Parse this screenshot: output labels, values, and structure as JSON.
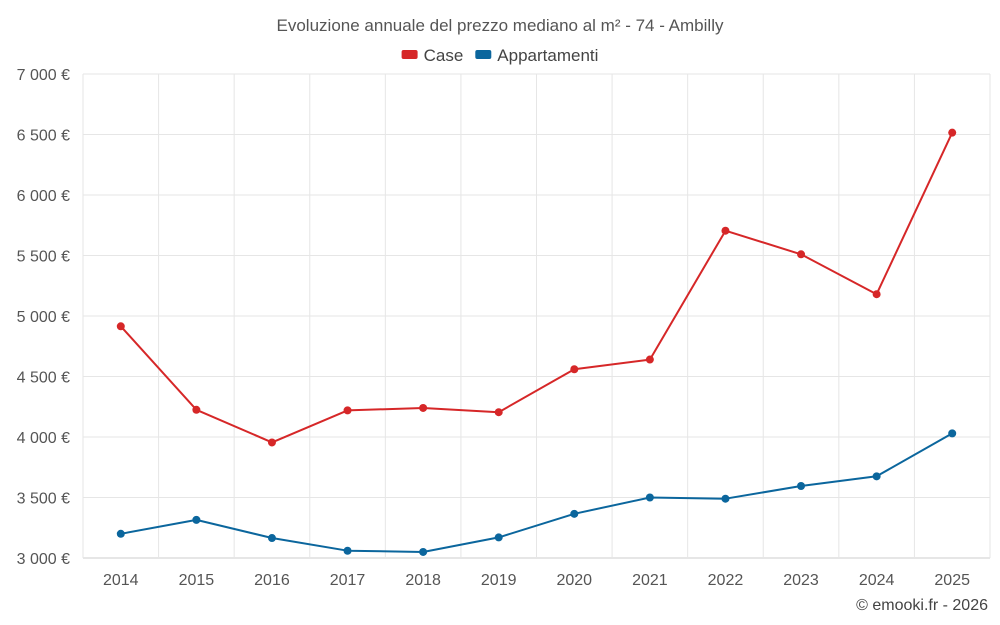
{
  "chart_data": {
    "type": "line",
    "title": "Evoluzione annuale del prezzo mediano al m² - 74 - Ambilly",
    "xlabel": "",
    "ylabel": "",
    "categories": [
      "2014",
      "2015",
      "2016",
      "2017",
      "2018",
      "2019",
      "2020",
      "2021",
      "2022",
      "2023",
      "2024",
      "2025"
    ],
    "ylim": [
      3000,
      7000
    ],
    "yticks": [
      {
        "value": 3000,
        "label": "3 000 €"
      },
      {
        "value": 3500,
        "label": "3 500 €"
      },
      {
        "value": 4000,
        "label": "4 000 €"
      },
      {
        "value": 4500,
        "label": "4 500 €"
      },
      {
        "value": 5000,
        "label": "5 000 €"
      },
      {
        "value": 5500,
        "label": "5 500 €"
      },
      {
        "value": 6000,
        "label": "6 000 €"
      },
      {
        "value": 6500,
        "label": "6 500 €"
      },
      {
        "value": 7000,
        "label": "7 000 €"
      }
    ],
    "grid": true,
    "legend_position": "top-center",
    "series": [
      {
        "name": "Case",
        "color": "#d62728",
        "values": [
          4915,
          4225,
          3955,
          4220,
          4240,
          4205,
          4560,
          4640,
          5705,
          5510,
          5180,
          6515
        ]
      },
      {
        "name": "Appartamenti",
        "color": "#0b669d",
        "values": [
          3200,
          3315,
          3165,
          3060,
          3050,
          3170,
          3365,
          3500,
          3490,
          3595,
          3675,
          4030
        ]
      }
    ]
  },
  "credit": "© emooki.fr - 2026"
}
